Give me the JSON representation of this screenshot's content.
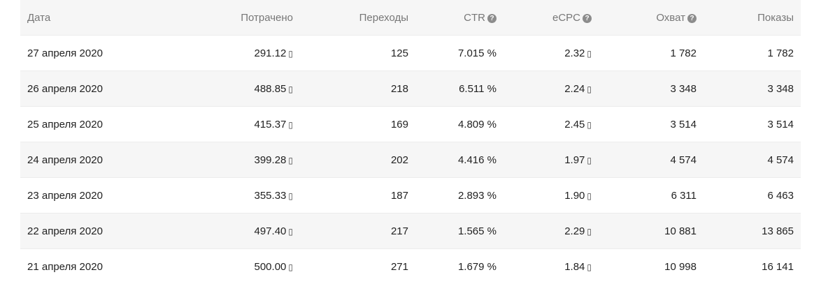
{
  "columns": {
    "date": "Дата",
    "spent": "Потрачено",
    "clicks": "Переходы",
    "ctr": "CTR",
    "ecpc": "eCPC",
    "reach": "Охват",
    "impressions": "Показы"
  },
  "help_icon": "?",
  "currency_symbol": "▯",
  "rows": [
    {
      "date": "27 апреля 2020",
      "spent": "291.12",
      "clicks": "125",
      "ctr": "7.015 %",
      "ecpc": "2.32",
      "reach": "1 782",
      "impressions": "1 782"
    },
    {
      "date": "26 апреля 2020",
      "spent": "488.85",
      "clicks": "218",
      "ctr": "6.511 %",
      "ecpc": "2.24",
      "reach": "3 348",
      "impressions": "3 348"
    },
    {
      "date": "25 апреля 2020",
      "spent": "415.37",
      "clicks": "169",
      "ctr": "4.809 %",
      "ecpc": "2.45",
      "reach": "3 514",
      "impressions": "3 514"
    },
    {
      "date": "24 апреля 2020",
      "spent": "399.28",
      "clicks": "202",
      "ctr": "4.416 %",
      "ecpc": "1.97",
      "reach": "4 574",
      "impressions": "4 574"
    },
    {
      "date": "23 апреля 2020",
      "spent": "355.33",
      "clicks": "187",
      "ctr": "2.893 %",
      "ecpc": "1.90",
      "reach": "6 311",
      "impressions": "6 463"
    },
    {
      "date": "22 апреля 2020",
      "spent": "497.40",
      "clicks": "217",
      "ctr": "1.565 %",
      "ecpc": "2.29",
      "reach": "10 881",
      "impressions": "13 865"
    },
    {
      "date": "21 апреля 2020",
      "spent": "500.00",
      "clicks": "271",
      "ctr": "1.679 %",
      "ecpc": "1.84",
      "reach": "10 998",
      "impressions": "16 141"
    }
  ]
}
